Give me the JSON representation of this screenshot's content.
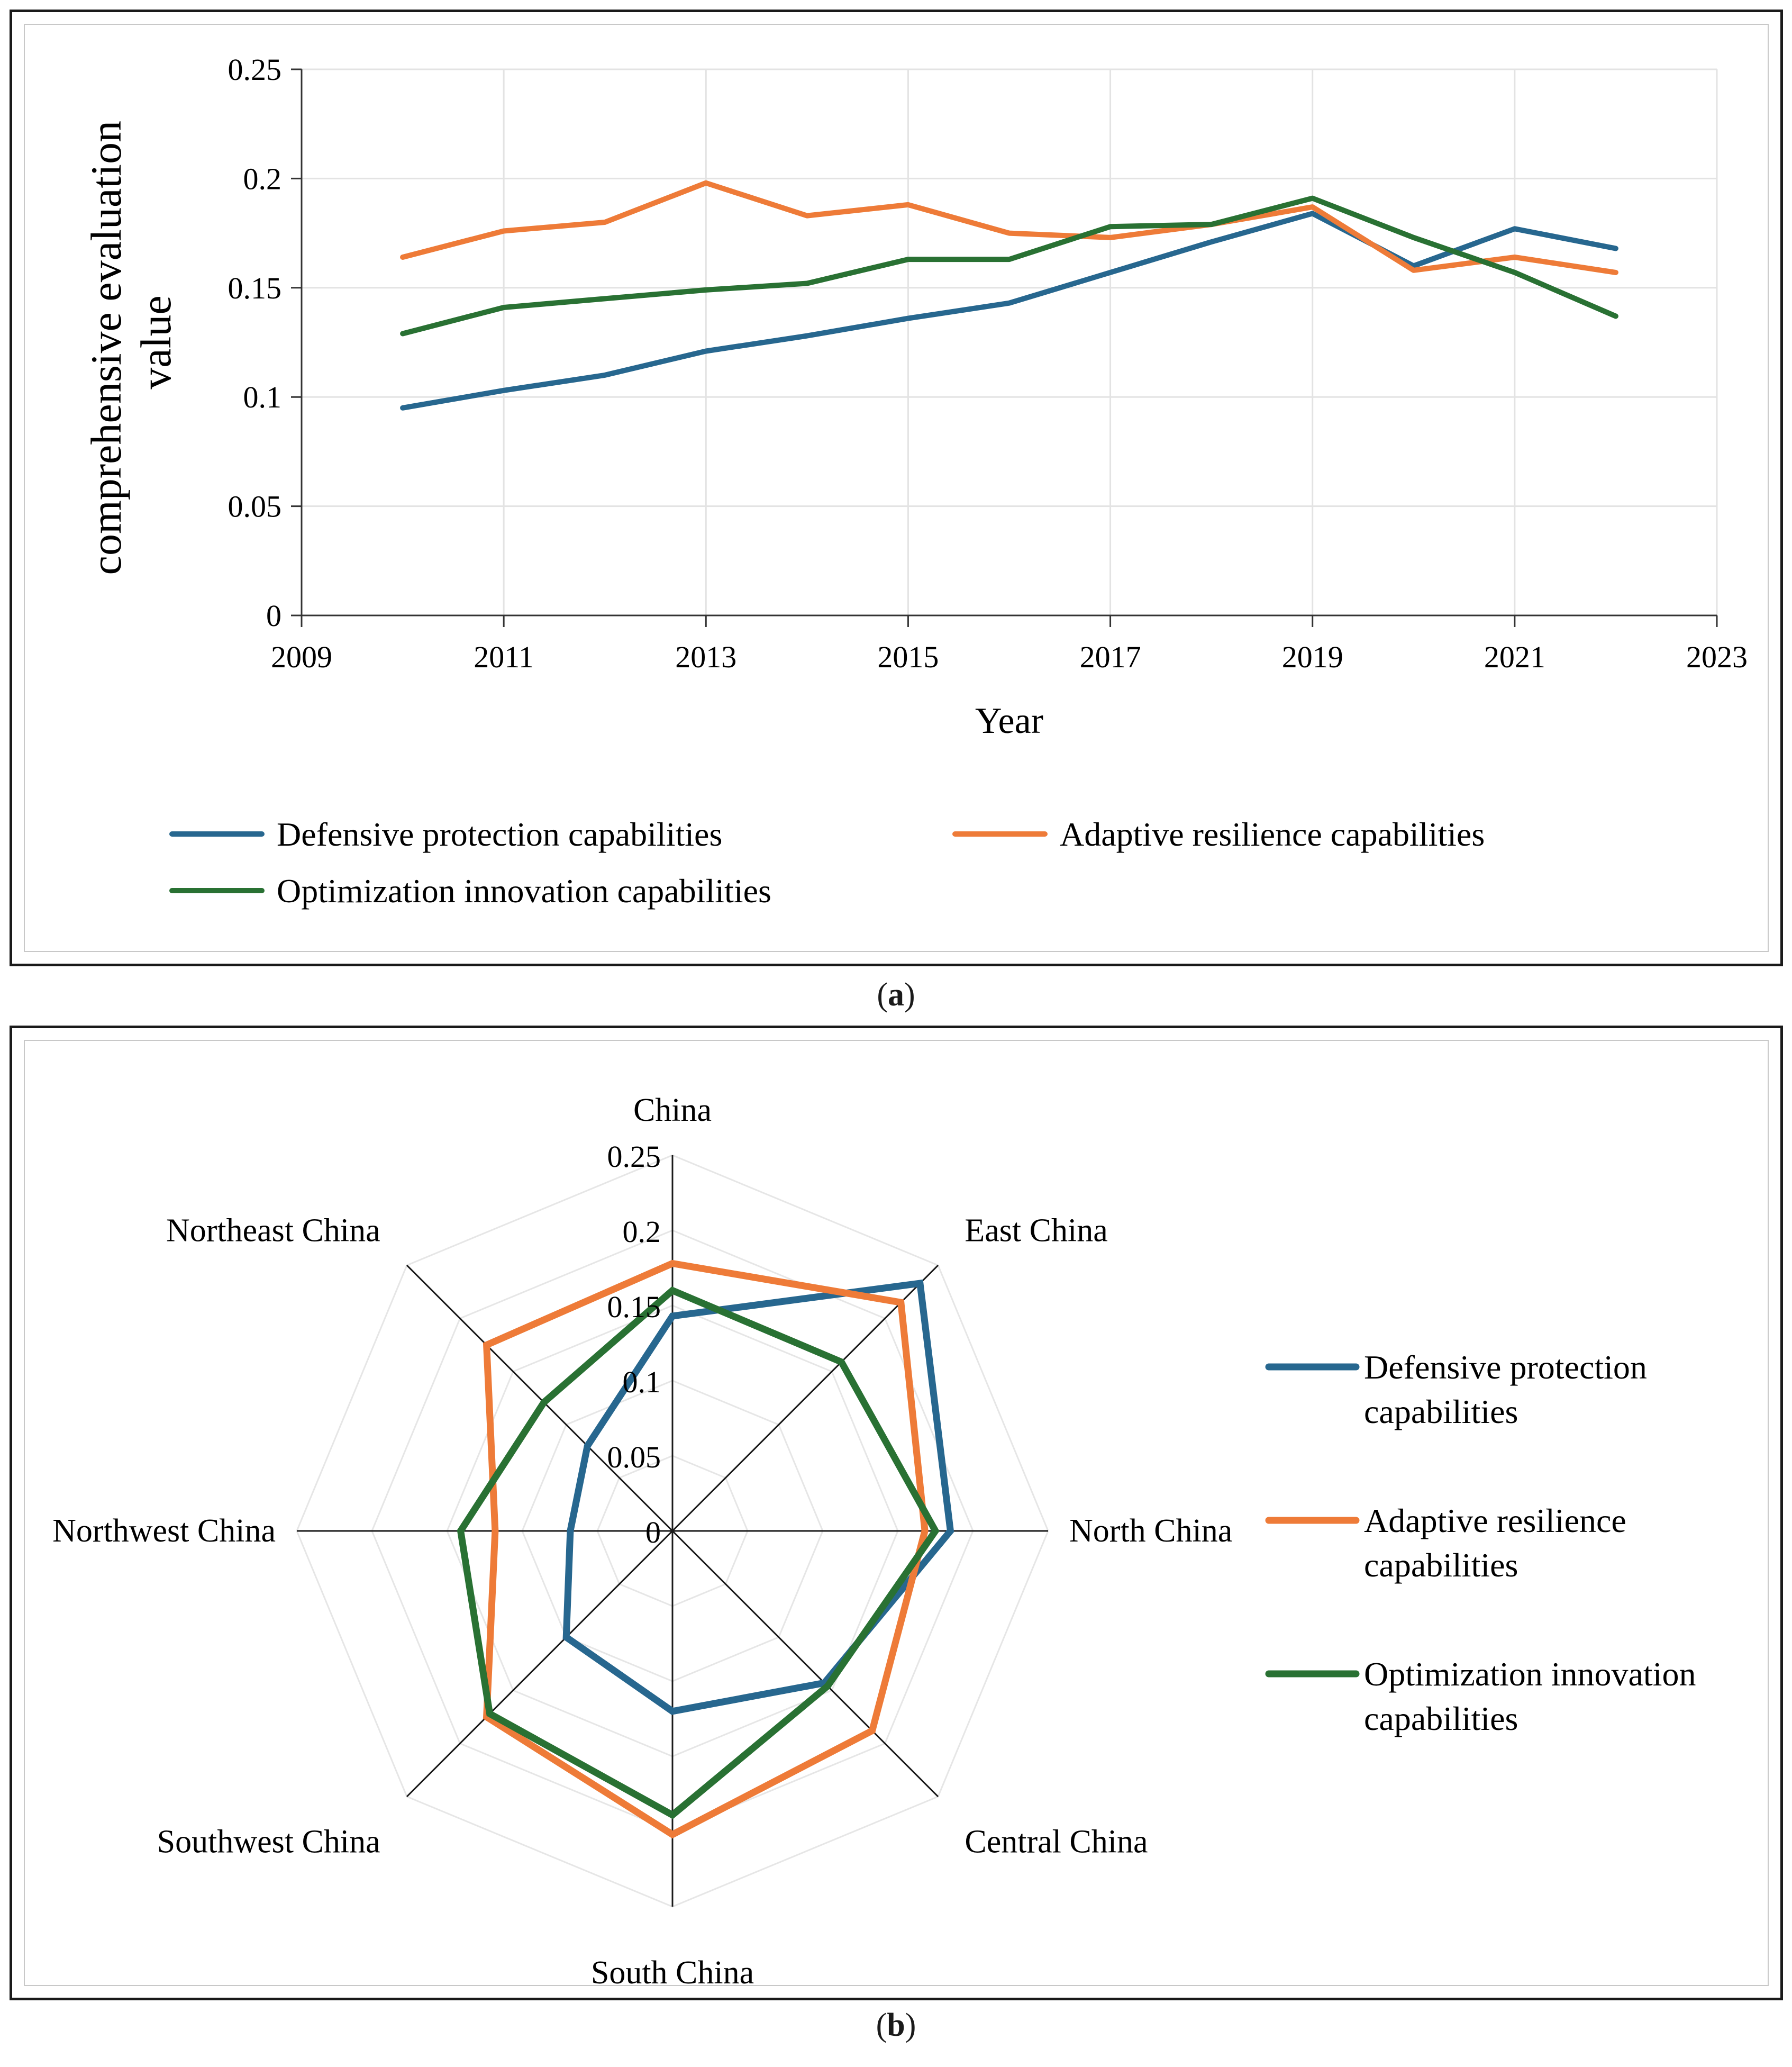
{
  "captions": {
    "a_open": "(",
    "a_letter": "a",
    "a_close": ")",
    "b_open": "(",
    "b_letter": "b",
    "b_close": ")"
  },
  "chart_data": [
    {
      "type": "line",
      "panel": "a",
      "xlabel": "Year",
      "ylabel_line1": "comprehensive evaluation",
      "ylabel_line2": "value",
      "xlim": [
        2009,
        2023
      ],
      "ylim": [
        0,
        0.25
      ],
      "xticks": [
        "2009",
        "2011",
        "2013",
        "2015",
        "2017",
        "2019",
        "2021",
        "2023"
      ],
      "yticks": [
        "0",
        "0.05",
        "0.1",
        "0.15",
        "0.2",
        "0.25"
      ],
      "x": [
        2010,
        2011,
        2012,
        2013,
        2014,
        2015,
        2016,
        2017,
        2018,
        2019,
        2020,
        2021,
        2022
      ],
      "grid": true,
      "legend_position": "bottom",
      "series": [
        {
          "name": "Defensive protection capabilities",
          "color": "#27678f",
          "values": [
            0.095,
            0.103,
            0.11,
            0.121,
            0.128,
            0.136,
            0.143,
            0.157,
            0.171,
            0.184,
            0.16,
            0.177,
            0.168
          ]
        },
        {
          "name": "Adaptive resilience capabilities",
          "color": "#ee7b38",
          "values": [
            0.164,
            0.176,
            0.18,
            0.198,
            0.183,
            0.188,
            0.175,
            0.173,
            0.179,
            0.187,
            0.158,
            0.164,
            0.157
          ]
        },
        {
          "name": "Optimization innovation capabilities",
          "color": "#297133",
          "values": [
            0.129,
            0.141,
            0.145,
            0.149,
            0.152,
            0.163,
            0.163,
            0.178,
            0.179,
            0.191,
            0.173,
            0.157,
            0.137
          ]
        }
      ]
    },
    {
      "type": "radar",
      "panel": "b",
      "axes": [
        "China",
        "East China",
        "North China",
        "Central China",
        "South China",
        "Southwest China",
        "Northwest China",
        "Northeast China"
      ],
      "rlim": [
        0,
        0.25
      ],
      "rticks": [
        "0",
        "0.05",
        "0.1",
        "0.15",
        "0.2",
        "0.25"
      ],
      "legend_position": "right",
      "series": [
        {
          "name": "Defensive protection capabilities",
          "name_line1": "Defensive protection",
          "name_line2": "capabilities",
          "color": "#27678f",
          "values": [
            0.143,
            0.233,
            0.185,
            0.143,
            0.12,
            0.1,
            0.068,
            0.08
          ]
        },
        {
          "name": "Adaptive resilience capabilities",
          "name_line1": "Adaptive resilience",
          "name_line2": "capabilities",
          "color": "#ee7b38",
          "values": [
            0.178,
            0.215,
            0.168,
            0.188,
            0.202,
            0.175,
            0.118,
            0.175
          ]
        },
        {
          "name": "Optimization innovation capabilities",
          "name_line1": "Optimization innovation",
          "name_line2": "capabilities",
          "color": "#297133",
          "values": [
            0.16,
            0.159,
            0.175,
            0.146,
            0.189,
            0.172,
            0.141,
            0.121
          ]
        }
      ]
    }
  ]
}
